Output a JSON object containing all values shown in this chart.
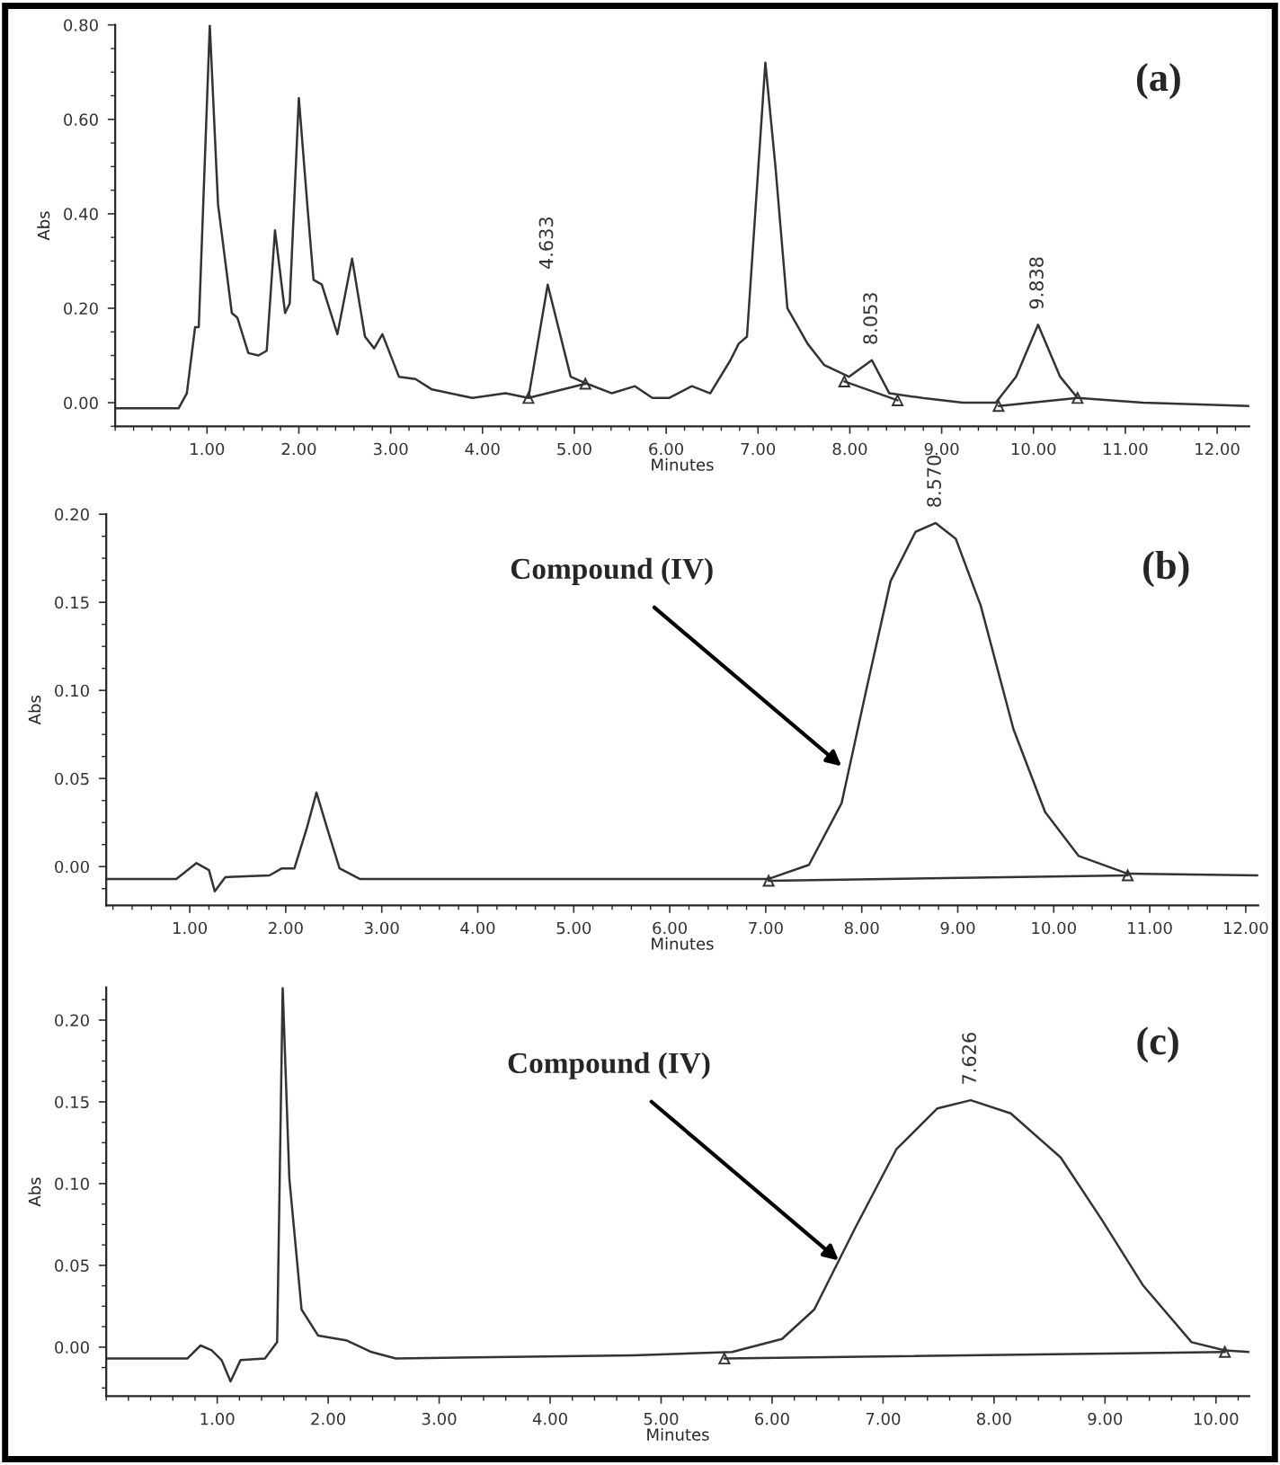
{
  "chart_data": [
    {
      "type": "line",
      "xlabel": "Minutes",
      "ylabel": "Abs",
      "annotations": [
        "(a)",
        {
          "text": "4.633",
          "x": 4.71,
          "y": 0.25
        },
        {
          "text": "8.053",
          "x": 8.24,
          "y": 0.09
        },
        {
          "text": "9.838",
          "x": 10.05,
          "y": 0.165
        }
      ],
      "xlim": [
        0,
        12.35
      ],
      "ylim": [
        -0.05,
        0.8
      ],
      "xticks": [
        {
          "value": 1,
          "label": "1.00"
        },
        {
          "value": 2,
          "label": "2.00"
        },
        {
          "value": 3,
          "label": "3.00"
        },
        {
          "value": 4,
          "label": "4.00"
        },
        {
          "value": 5,
          "label": "5.00"
        },
        {
          "value": 6,
          "label": "6.00"
        },
        {
          "value": 7,
          "label": "7.00"
        },
        {
          "value": 8,
          "label": "8.00"
        },
        {
          "value": 9,
          "label": "9.00"
        },
        {
          "value": 10,
          "label": "10.00"
        },
        {
          "value": 11,
          "label": "11.00"
        },
        {
          "value": 12,
          "label": "12.00"
        }
      ],
      "yticks": [
        {
          "value": 0,
          "label": "0.00"
        },
        {
          "value": 0.2,
          "label": "0.20"
        },
        {
          "value": 0.4,
          "label": "0.40"
        },
        {
          "value": 0.6,
          "label": "0.60"
        },
        {
          "value": 0.8,
          "label": "0.80"
        }
      ],
      "series": [
        {
          "color": "#333333",
          "x": [
            0,
            0.69,
            0.78,
            0.87,
            0.91,
            1.03,
            1.12,
            1.27,
            1.33,
            1.45,
            1.56,
            1.65,
            1.74,
            1.85,
            1.9,
            2.0,
            2.1,
            2.16,
            2.25,
            2.42,
            2.58,
            2.72,
            2.82,
            2.91,
            3.09,
            3.27,
            3.45,
            3.89,
            4.25,
            4.5,
            4.71,
            4.96,
            5.14,
            5.41,
            5.66,
            5.85,
            6.03,
            6.28,
            6.48,
            6.7,
            6.79,
            6.88,
            7.08,
            7.19,
            7.32,
            7.54,
            7.72,
            7.99,
            8.24,
            8.43,
            8.79,
            9.23,
            9.59,
            9.81,
            10.05,
            10.29,
            10.48,
            11.19,
            12.35
          ],
          "values": [
            -0.012,
            -0.012,
            0.02,
            0.16,
            0.16,
            0.8,
            0.42,
            0.19,
            0.18,
            0.105,
            0.1,
            0.11,
            0.365,
            0.19,
            0.21,
            0.645,
            0.4,
            0.26,
            0.25,
            0.145,
            0.305,
            0.14,
            0.115,
            0.145,
            0.055,
            0.05,
            0.028,
            0.01,
            0.02,
            0.01,
            0.25,
            0.055,
            0.04,
            0.02,
            0.035,
            0.01,
            0.01,
            0.035,
            0.02,
            0.09,
            0.125,
            0.14,
            0.72,
            0.5,
            0.2,
            0.125,
            0.08,
            0.055,
            0.09,
            0.02,
            0.01,
            0.0,
            0.0,
            0.055,
            0.165,
            0.055,
            0.01,
            0.0,
            -0.007
          ]
        },
        {
          "color": "#333333",
          "marker": "triangle",
          "x": [
            4.5,
            5.12
          ],
          "values": [
            0.01,
            0.04
          ]
        },
        {
          "color": "#333333",
          "marker": "triangle",
          "x": [
            7.94,
            8.52
          ],
          "values": [
            0.045,
            0.005
          ]
        },
        {
          "color": "#333333",
          "marker": "triangle",
          "x": [
            9.62,
            10.48
          ],
          "values": [
            -0.007,
            0.01
          ]
        }
      ]
    },
    {
      "type": "line",
      "xlabel": "Minutes",
      "ylabel": "Abs",
      "annotations": [
        "(b)",
        {
          "text": "Compound (IV)",
          "x": 7.79,
          "y": 0.057
        },
        {
          "text": "8.570",
          "x": 8.77,
          "y": 0.195
        }
      ],
      "xlim": [
        0.13,
        12.13
      ],
      "ylim": [
        -0.022,
        0.2
      ],
      "xticks": [
        {
          "value": 1,
          "label": "1.00"
        },
        {
          "value": 2,
          "label": "2.00"
        },
        {
          "value": 3,
          "label": "3.00"
        },
        {
          "value": 4,
          "label": "4.00"
        },
        {
          "value": 5,
          "label": "5.00"
        },
        {
          "value": 6,
          "label": "6.00"
        },
        {
          "value": 7,
          "label": "7.00"
        },
        {
          "value": 8,
          "label": "8.00"
        },
        {
          "value": 9,
          "label": "9.00"
        },
        {
          "value": 10,
          "label": "10.00"
        },
        {
          "value": 11,
          "label": "11.00"
        },
        {
          "value": 12,
          "label": "12.00"
        }
      ],
      "yticks": [
        {
          "value": 0,
          "label": "0.00"
        },
        {
          "value": 0.05,
          "label": "0.05"
        },
        {
          "value": 0.1,
          "label": "0.10"
        },
        {
          "value": 0.15,
          "label": "0.15"
        },
        {
          "value": 0.2,
          "label": "0.20"
        }
      ],
      "series": [
        {
          "color": "#333333",
          "x": [
            0.13,
            0.86,
            1.07,
            1.2,
            1.26,
            1.37,
            1.83,
            1.96,
            2.09,
            2.22,
            2.32,
            2.43,
            2.56,
            2.77,
            7.03,
            7.45,
            7.79,
            8.05,
            8.3,
            8.56,
            8.77,
            8.98,
            9.24,
            9.58,
            9.91,
            10.26,
            10.77,
            12.13
          ],
          "values": [
            -0.007,
            -0.007,
            0.002,
            -0.002,
            -0.014,
            -0.006,
            -0.005,
            -0.001,
            -0.001,
            0.022,
            0.042,
            0.022,
            -0.001,
            -0.007,
            -0.007,
            0.001,
            0.036,
            0.101,
            0.162,
            0.19,
            0.195,
            0.186,
            0.148,
            0.078,
            0.031,
            0.006,
            -0.004,
            -0.005
          ]
        },
        {
          "color": "#333333",
          "marker": "triangle",
          "x": [
            7.03,
            10.77
          ],
          "values": [
            -0.008,
            -0.005
          ]
        }
      ]
    },
    {
      "type": "line",
      "xlabel": "Minutes",
      "ylabel": "Abs",
      "annotations": [
        "(c)",
        {
          "text": "Compound (IV)",
          "x": 6.6,
          "y": 0.053
        },
        {
          "text": "7.626",
          "x": 7.79,
          "y": 0.151
        }
      ],
      "xlim": [
        0,
        10.3
      ],
      "ylim": [
        -0.03,
        0.22
      ],
      "xticks": [
        {
          "value": 1,
          "label": "1.00"
        },
        {
          "value": 2,
          "label": "2.00"
        },
        {
          "value": 3,
          "label": "3.00"
        },
        {
          "value": 4,
          "label": "4.00"
        },
        {
          "value": 5,
          "label": "5.00"
        },
        {
          "value": 6,
          "label": "6.00"
        },
        {
          "value": 7,
          "label": "7.00"
        },
        {
          "value": 8,
          "label": "8.00"
        },
        {
          "value": 9,
          "label": "9.00"
        },
        {
          "value": 10,
          "label": "10.00"
        }
      ],
      "yticks": [
        {
          "value": 0,
          "label": "0.00"
        },
        {
          "value": 0.05,
          "label": "0.05"
        },
        {
          "value": 0.1,
          "label": "0.10"
        },
        {
          "value": 0.15,
          "label": "0.15"
        },
        {
          "value": 0.2,
          "label": "0.20"
        }
      ],
      "series": [
        {
          "color": "#333333",
          "x": [
            0,
            0.73,
            0.85,
            0.95,
            1.04,
            1.12,
            1.21,
            1.43,
            1.54,
            1.59,
            1.65,
            1.76,
            1.91,
            2.17,
            2.39,
            2.61,
            4.75,
            5.64,
            6.09,
            6.38,
            6.75,
            7.12,
            7.49,
            7.79,
            8.15,
            8.6,
            8.97,
            9.34,
            9.78,
            10.08,
            10.3
          ],
          "values": [
            -0.007,
            -0.007,
            0.001,
            -0.002,
            -0.008,
            -0.021,
            -0.008,
            -0.007,
            0.003,
            0.22,
            0.103,
            0.023,
            0.007,
            0.004,
            -0.003,
            -0.007,
            -0.005,
            -0.003,
            0.005,
            0.023,
            0.073,
            0.121,
            0.146,
            0.151,
            0.143,
            0.116,
            0.078,
            0.038,
            0.003,
            -0.002,
            -0.003
          ]
        },
        {
          "color": "#333333",
          "marker": "triangle",
          "x": [
            5.57,
            10.08
          ],
          "values": [
            -0.007,
            -0.003
          ]
        }
      ]
    }
  ]
}
